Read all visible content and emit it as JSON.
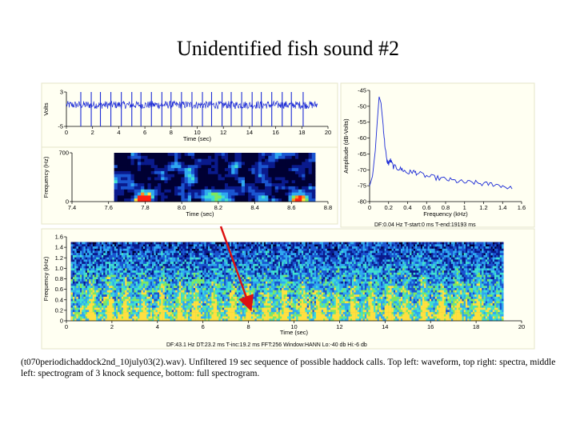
{
  "title": "Unidentified fish sound #2",
  "caption": "(t070periodichaddock2nd_10july03(2).wav). Unfiltered 19 sec sequence of possible haddock calls. Top left: waveform, top right: spectra, middle left: spectrogram of 3 knock sequence, bottom: full spectrogram.",
  "colors": {
    "panel_bg": "#fffff2",
    "panel_border": "#e6e6c8",
    "trace": "#1c2bd6",
    "arrow": "#dd1111",
    "spec_dark": "#000033"
  },
  "chart_data": [
    {
      "type": "line",
      "name": "waveform",
      "ylabel": "Volts",
      "xlabel": "Time (sec)",
      "xlim": [
        0,
        20
      ],
      "ylim": [
        -5,
        3
      ],
      "xticks": [
        "0",
        "2",
        "4",
        "6",
        "8",
        "10",
        "12",
        "14",
        "16",
        "18",
        "20"
      ],
      "yticks": [
        "3",
        "-5"
      ],
      "signal_end_sec": 19.2,
      "pulse_times_sec": [
        1.1,
        1.9,
        2.6,
        3.4,
        4.2,
        5.0,
        5.7,
        6.5,
        7.3,
        8.0,
        8.8,
        9.6,
        10.4,
        11.1,
        11.9,
        12.6,
        13.4,
        14.2,
        14.9,
        15.7,
        16.5,
        17.2,
        18.1
      ],
      "noise_band": [
        -0.9,
        0.9
      ],
      "pulse_extent": [
        -5,
        3
      ]
    },
    {
      "type": "line",
      "name": "spectrum",
      "ylabel": "Amplitude (dB-Volts)",
      "xlabel": "Frequency (kHz)",
      "xlim": [
        0,
        1.6
      ],
      "ylim": [
        -80,
        -45
      ],
      "xticks": [
        "0",
        "0.2",
        "0.4",
        "0.6",
        "0.8",
        "1",
        "1.2",
        "1.4",
        "1.6"
      ],
      "yticks": [
        "-45",
        "-50",
        "-55",
        "-60",
        "-65",
        "-70",
        "-75",
        "-80"
      ],
      "x": [
        0.0,
        0.03,
        0.06,
        0.08,
        0.1,
        0.12,
        0.14,
        0.16,
        0.18,
        0.2,
        0.22,
        0.25,
        0.3,
        0.35,
        0.4,
        0.45,
        0.5,
        0.6,
        0.7,
        0.8,
        0.9,
        1.0,
        1.1,
        1.2,
        1.3,
        1.4,
        1.5
      ],
      "y": [
        -75,
        -72,
        -64,
        -55,
        -47,
        -49,
        -55,
        -62,
        -67,
        -68,
        -67,
        -69,
        -69.5,
        -70,
        -71,
        -70.5,
        -71,
        -72,
        -72.5,
        -73,
        -73.5,
        -74,
        -74,
        -74.5,
        -74.5,
        -75,
        -76
      ],
      "info": "DF:0.04 Hz     T-start:0 ms     T-end:19193 ms"
    },
    {
      "type": "heatmap",
      "name": "spectrogram-3-knocks",
      "ylabel": "Frequency (Hz)",
      "xlabel": "Time (sec)",
      "xlim": [
        7.4,
        8.8
      ],
      "ylim": [
        0,
        700
      ],
      "xticks": [
        "7.4",
        "7.6",
        "7.8",
        "8.0",
        "8.2",
        "8.4",
        "8.6",
        "8.8"
      ],
      "yticks": [
        "700",
        "0"
      ],
      "data_extent_sec": [
        7.63,
        8.73
      ],
      "knock_times_sec": [
        7.79,
        8.2,
        8.64
      ]
    },
    {
      "type": "heatmap",
      "name": "full-spectrogram",
      "ylabel": "Frequency (kHz)",
      "xlabel": "Time (sec)",
      "xlim": [
        0,
        20
      ],
      "ylim": [
        0,
        1.6
      ],
      "xticks": [
        "0",
        "2",
        "4",
        "6",
        "8",
        "10",
        "12",
        "14",
        "16",
        "18",
        "20"
      ],
      "yticks": [
        "1.6",
        "1.4",
        "1.2",
        "1.0",
        "0.8",
        "0.6",
        "0.4",
        "0.2",
        "0"
      ],
      "data_extent_sec": [
        0.2,
        19.2
      ],
      "data_top_khz": 1.5,
      "info": "DF:43.1 Hz     DT:23.2 ms     T-inc:19.2 ms     FFT:256     Window:HANN     Lo:-40 db     Hi:-6 db"
    }
  ]
}
